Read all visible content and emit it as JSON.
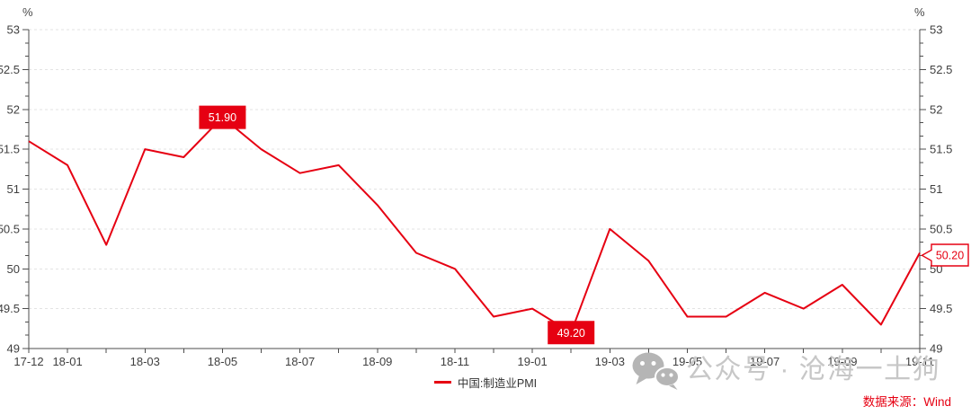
{
  "chart_data": {
    "type": "line",
    "title": "",
    "unit_left": "%",
    "unit_right": "%",
    "x": [
      "17-12",
      "18-01",
      "18-02",
      "18-03",
      "18-04",
      "18-05",
      "18-06",
      "18-07",
      "18-08",
      "18-09",
      "18-10",
      "18-11",
      "18-12",
      "19-01",
      "19-02",
      "19-03",
      "19-04",
      "19-05",
      "19-06",
      "19-07",
      "19-08",
      "19-09",
      "19-10",
      "19-11"
    ],
    "series": [
      {
        "name": "中国:制造业PMI",
        "color": "#e60012",
        "values": [
          51.6,
          51.3,
          50.3,
          51.5,
          51.4,
          51.9,
          51.5,
          51.2,
          51.3,
          50.8,
          50.2,
          50.0,
          49.4,
          49.5,
          49.2,
          50.5,
          50.1,
          49.4,
          49.4,
          49.7,
          49.5,
          49.8,
          49.3,
          50.2
        ]
      }
    ],
    "ylim": [
      49,
      53
    ],
    "yticks": [
      49,
      49.5,
      50,
      50.5,
      51,
      51.5,
      52,
      52.5,
      53
    ],
    "ytick_labels": [
      "49",
      "49.5",
      "50",
      "50.5",
      "51",
      "51.5",
      "52",
      "52.5",
      "53"
    ],
    "x_axis_labels": [
      {
        "index": 0,
        "label": "17-12"
      },
      {
        "index": 1,
        "label": "18-01"
      },
      {
        "index": 3,
        "label": "18-03"
      },
      {
        "index": 5,
        "label": "18-05"
      },
      {
        "index": 7,
        "label": "18-07"
      },
      {
        "index": 9,
        "label": "18-09"
      },
      {
        "index": 11,
        "label": "18-11"
      },
      {
        "index": 13,
        "label": "19-01"
      },
      {
        "index": 15,
        "label": "19-03"
      },
      {
        "index": 17,
        "label": "19-05"
      },
      {
        "index": 19,
        "label": "19-07"
      },
      {
        "index": 21,
        "label": "19-09"
      },
      {
        "index": 23,
        "label": "19-11"
      }
    ],
    "grid": {
      "horizontal": true,
      "style": "dashed",
      "color": "#e3e3e3"
    },
    "legend_position": "bottom-center",
    "annotations": [
      {
        "x": "18-05",
        "value": 51.9,
        "label": "51.90",
        "style": "filled-box"
      },
      {
        "x": "19-02",
        "value": 49.2,
        "label": "49.20",
        "style": "filled-box"
      },
      {
        "x": "19-11",
        "value": 50.2,
        "label": "50.20",
        "style": "outline-callout"
      }
    ]
  },
  "legend": {
    "label": "中国:制造业PMI"
  },
  "watermark": {
    "icon": "wechat-icon",
    "text": "公众号 · 沧海一土狗"
  },
  "source_note": "数据来源：Wind",
  "colors": {
    "line_red": "#e60012",
    "axis": "#4d4d4d",
    "tick_label": "#404040",
    "grid": "#e3e3e3",
    "watermark_gray": "#c7c7c7",
    "annotation_text_white": "#ffffff",
    "background": "#ffffff"
  }
}
